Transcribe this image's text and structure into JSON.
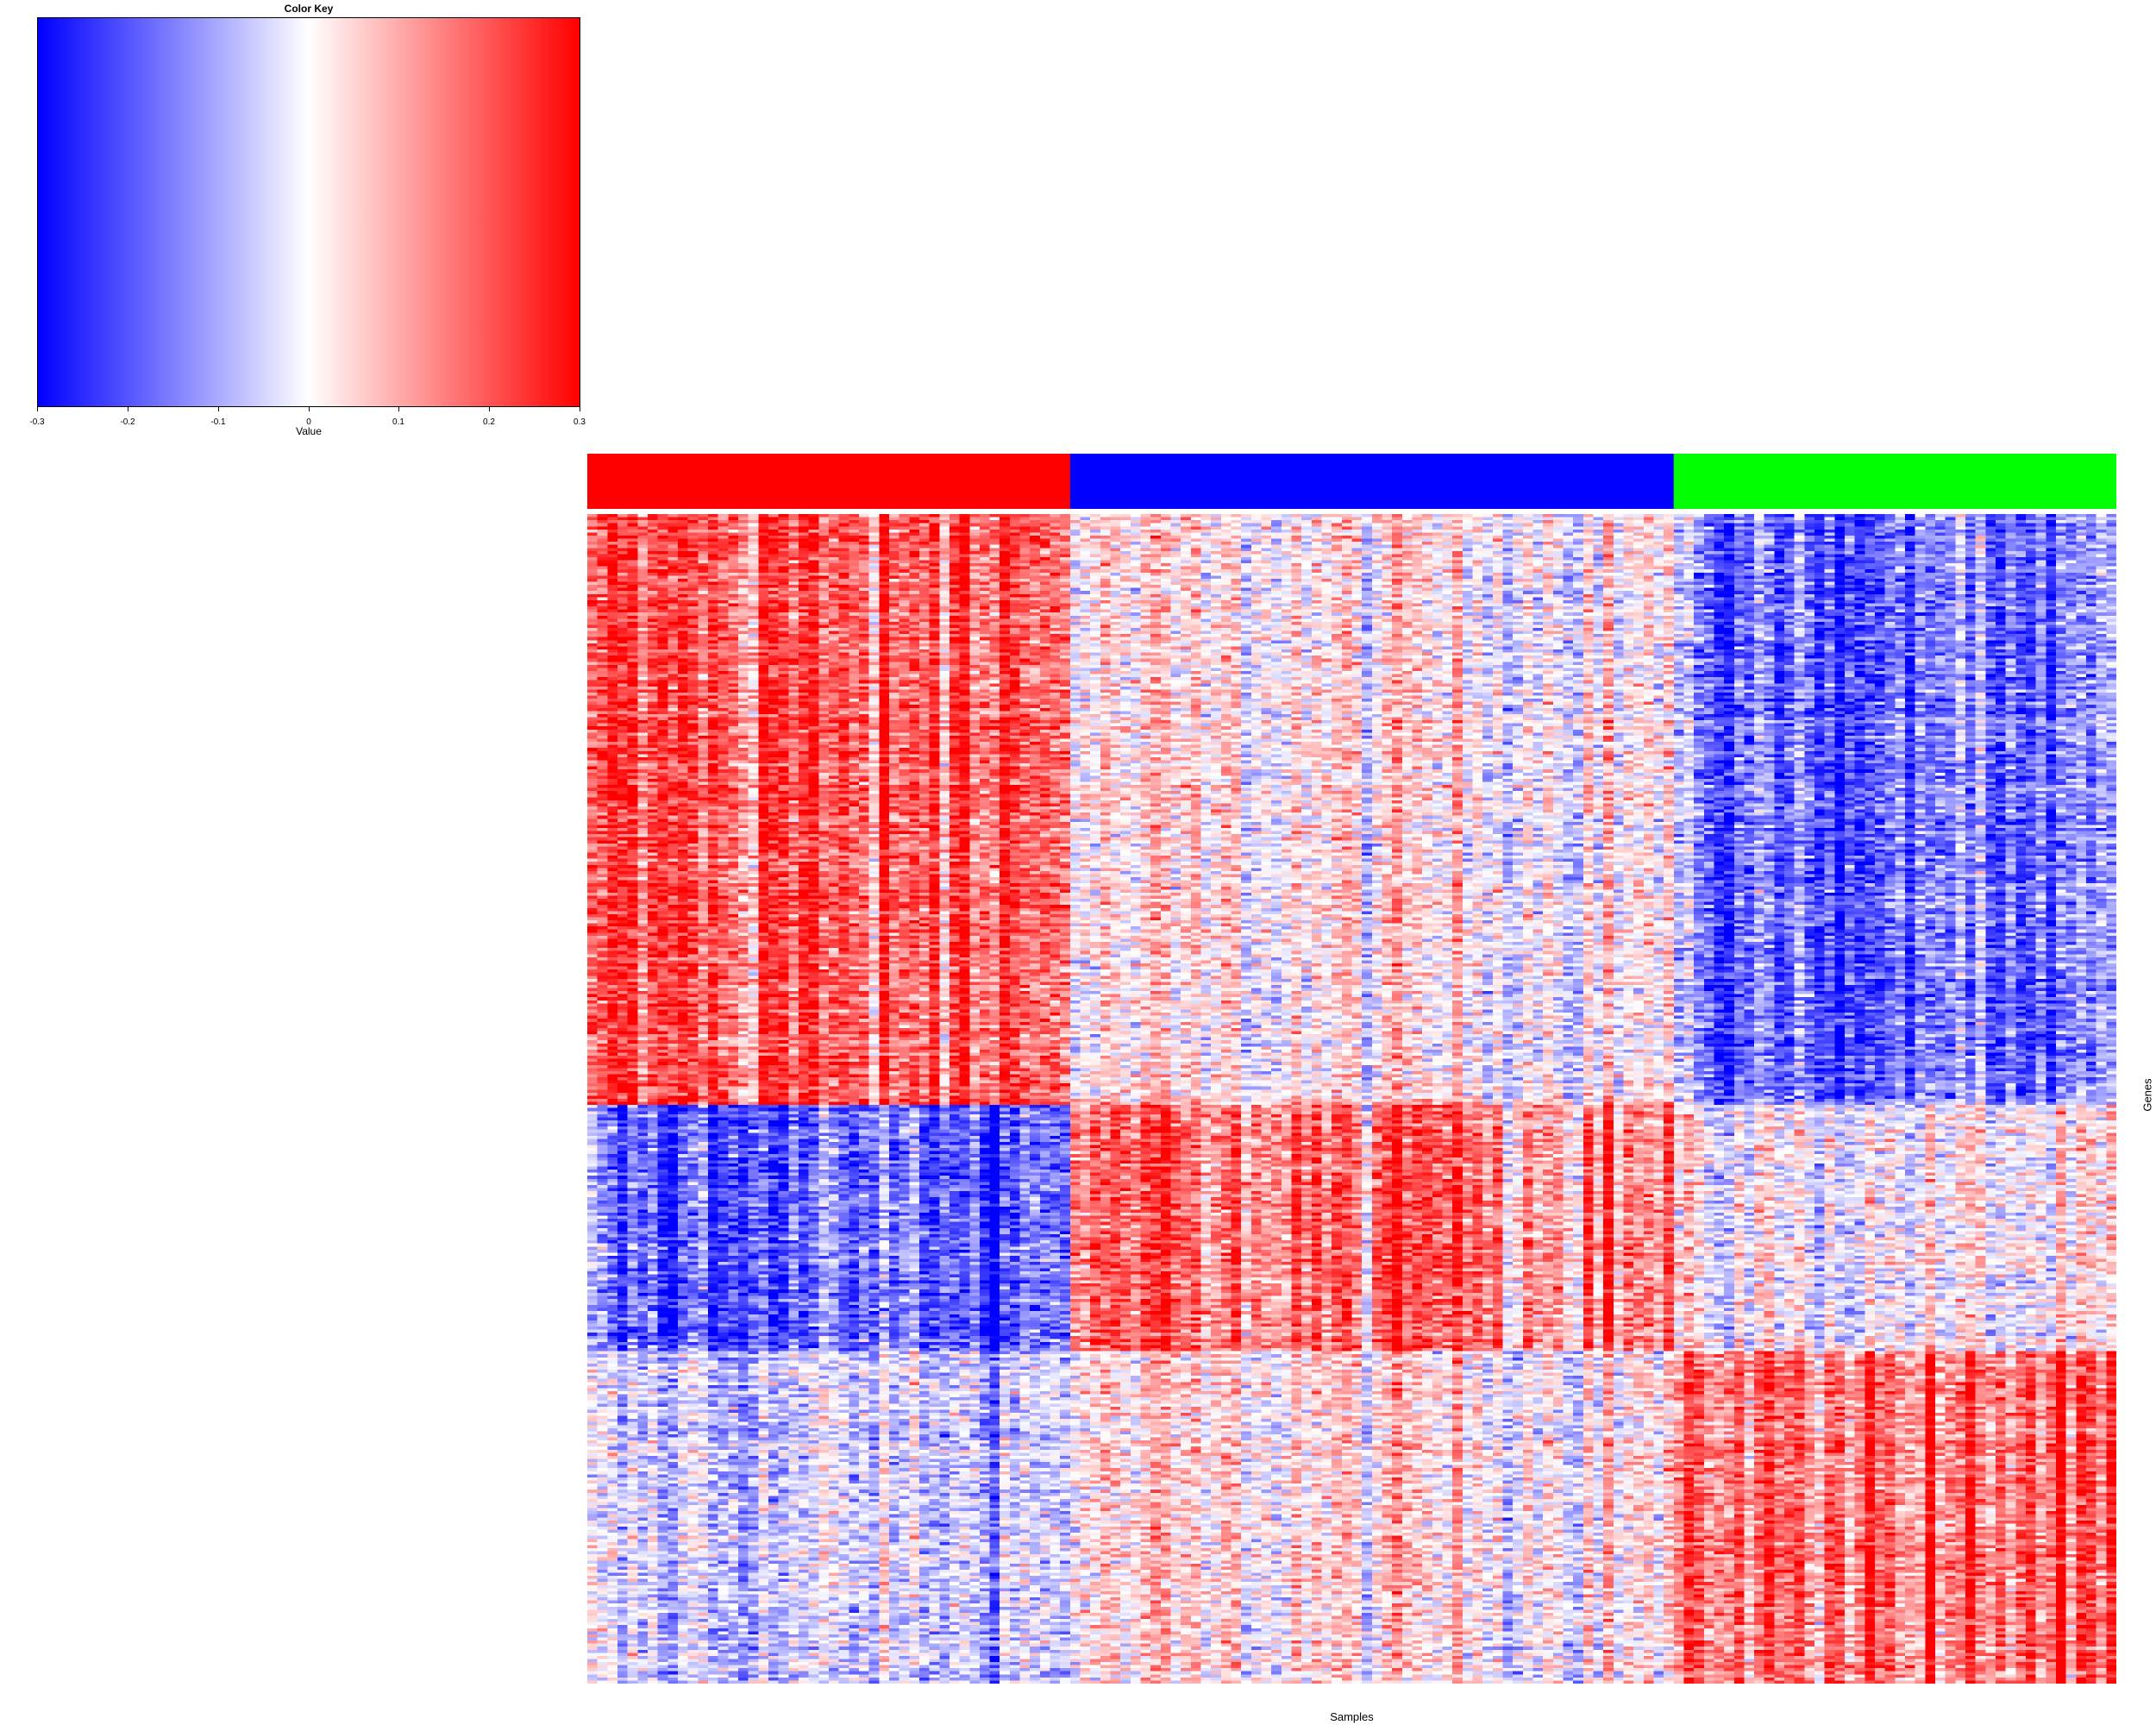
{
  "chart_data": {
    "type": "heatmap",
    "title": "",
    "xlabel": "Samples",
    "ylabel": "Genes",
    "color_key": {
      "title": "Color Key",
      "xlabel": "Value",
      "range": [
        -0.3,
        0.3
      ],
      "colors": [
        "#0000ff",
        "#ffffff",
        "#ff0000"
      ],
      "ticks": [
        "-0.3",
        "-0.2",
        "-0.1",
        "0",
        "0.1",
        "0.2",
        "0.3"
      ]
    },
    "column_groups": [
      {
        "color": "#ff0000",
        "n_samples": 48
      },
      {
        "color": "#0000ff",
        "n_samples": 60
      },
      {
        "color": "#00ff00",
        "n_samples": 44
      }
    ],
    "n_genes": 380,
    "block_means": [
      {
        "gene_range": [
          0,
          0.505
        ],
        "values": [
          0.18,
          0.02,
          -0.17
        ]
      },
      {
        "gene_range": [
          0.505,
          0.715
        ],
        "values": [
          -0.17,
          0.15,
          0.0
        ]
      },
      {
        "gene_range": [
          0.715,
          1.0
        ],
        "values": [
          -0.05,
          0.03,
          0.17
        ]
      }
    ]
  }
}
